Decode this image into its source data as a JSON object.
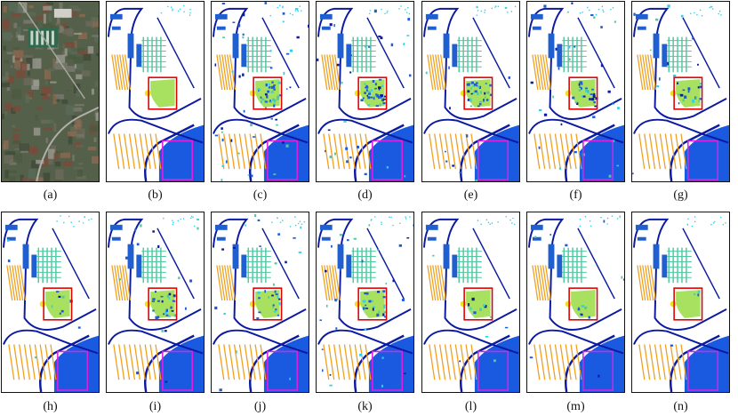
{
  "panels": [
    {
      "label": "(a)",
      "kind": "photo"
    },
    {
      "label": "(b)",
      "kind": "map",
      "noise": 0.0
    },
    {
      "label": "(c)",
      "kind": "map",
      "noise": 0.9
    },
    {
      "label": "(d)",
      "kind": "map",
      "noise": 0.75
    },
    {
      "label": "(e)",
      "kind": "map",
      "noise": 0.5
    },
    {
      "label": "(f)",
      "kind": "map",
      "noise": 0.6
    },
    {
      "label": "(g)",
      "kind": "map",
      "noise": 0.35
    },
    {
      "label": "(h)",
      "kind": "map",
      "noise": 0.12
    },
    {
      "label": "(i)",
      "kind": "map",
      "noise": 0.45
    },
    {
      "label": "(j)",
      "kind": "map",
      "noise": 0.4
    },
    {
      "label": "(k)",
      "kind": "map",
      "noise": 0.55
    },
    {
      "label": "(l)",
      "kind": "map",
      "noise": 0.15
    },
    {
      "label": "(m)",
      "kind": "map",
      "noise": 0.2
    },
    {
      "label": "(n)",
      "kind": "map",
      "noise": 0.05
    }
  ],
  "colors": {
    "road": "#0b1aa0",
    "stripe_blue": "#1f5fd0",
    "stripe_orange": "#f0a020",
    "green_field": "#a8e060",
    "tree_green": "#50c8a0",
    "water": "#1a5ae0",
    "cyan": "#30d0e8",
    "yellow": "#f0e020",
    "highlight_red": "#e00000",
    "highlight_magenta": "#e020e0"
  }
}
